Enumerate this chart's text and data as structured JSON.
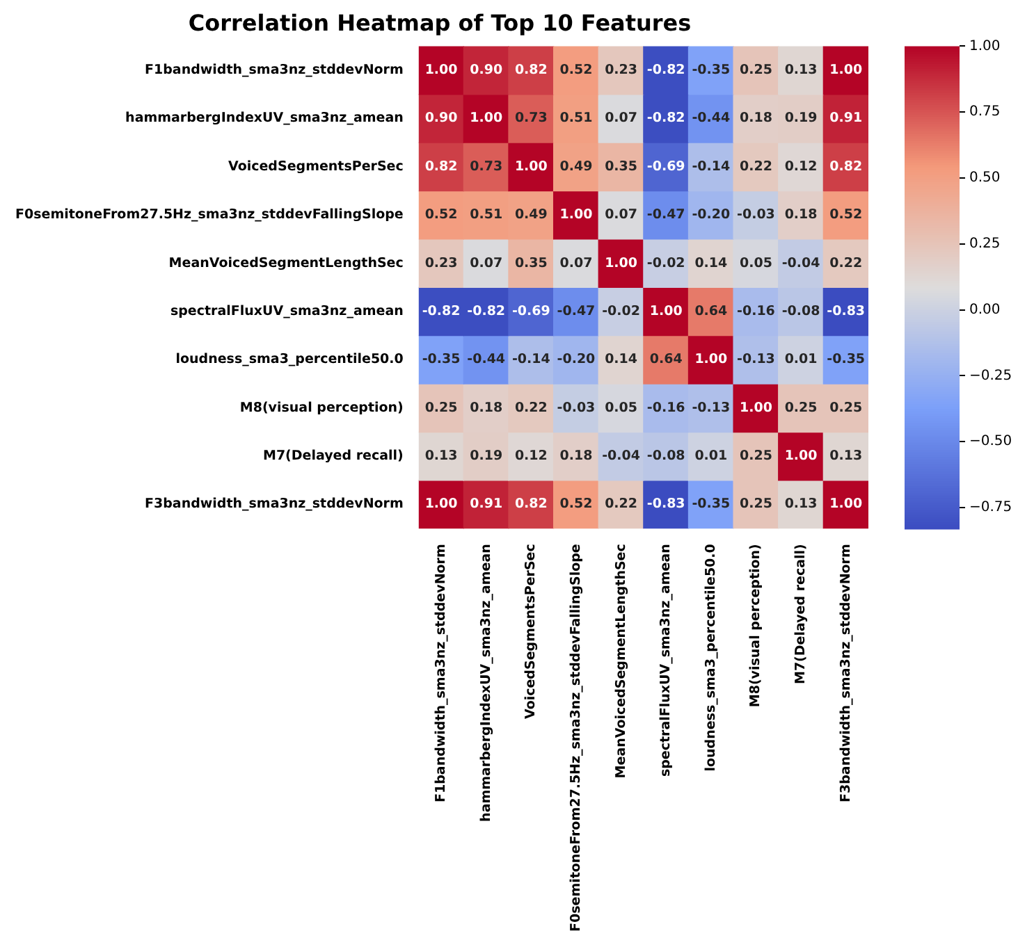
{
  "chart_data": {
    "type": "heatmap",
    "title": "Correlation Heatmap of Top 10 Features",
    "categories": [
      "F1bandwidth_sma3nz_stddevNorm",
      "hammarbergIndexUV_sma3nz_amean",
      "VoicedSegmentsPerSec",
      "F0semitoneFrom27.5Hz_sma3nz_stddevFallingSlope",
      "MeanVoicedSegmentLengthSec",
      "spectralFluxUV_sma3nz_amean",
      "loudness_sma3_percentile50.0",
      "M8(visual perception)",
      "M7(Delayed recall)",
      "F3bandwidth_sma3nz_stddevNorm"
    ],
    "y_categories": [
      "F1bandwidth_sma3nz_stddevNorm",
      "hammarbergIndexUV_sma3nz_amean",
      "VoicedSegmentsPerSec",
      "F0semitoneFrom27.5Hz_sma3nz_stddevFallingSlope",
      "MeanVoicedSegmentLengthSec",
      "spectralFluxUV_sma3nz_amean",
      "loudness_sma3_percentile50.0",
      "M8(visual perception)",
      "M7(Delayed recall)",
      "F3bandwidth_sma3nz_stddevNorm"
    ],
    "cells": [
      [
        1.0,
        0.9,
        0.82,
        0.52,
        0.23,
        -0.82,
        -0.35,
        0.25,
        0.13,
        1.0
      ],
      [
        0.9,
        1.0,
        0.73,
        0.51,
        0.07,
        -0.82,
        -0.44,
        0.18,
        0.19,
        0.91
      ],
      [
        0.82,
        0.73,
        1.0,
        0.49,
        0.35,
        -0.69,
        -0.14,
        0.22,
        0.12,
        0.82
      ],
      [
        0.52,
        0.51,
        0.49,
        1.0,
        0.07,
        -0.47,
        -0.2,
        -0.03,
        0.18,
        0.52
      ],
      [
        0.23,
        0.07,
        0.35,
        0.07,
        1.0,
        -0.02,
        0.14,
        0.05,
        -0.04,
        0.22
      ],
      [
        -0.82,
        -0.82,
        -0.69,
        -0.47,
        -0.02,
        1.0,
        0.64,
        -0.16,
        -0.08,
        -0.83
      ],
      [
        -0.35,
        -0.44,
        -0.14,
        -0.2,
        0.14,
        0.64,
        1.0,
        -0.13,
        0.01,
        -0.35
      ],
      [
        0.25,
        0.18,
        0.22,
        -0.03,
        0.05,
        -0.16,
        -0.13,
        1.0,
        0.25,
        0.25
      ],
      [
        0.13,
        0.19,
        0.12,
        0.18,
        -0.04,
        -0.08,
        0.01,
        0.25,
        1.0,
        0.13
      ],
      [
        1.0,
        0.91,
        0.82,
        0.52,
        0.22,
        -0.83,
        -0.35,
        0.25,
        0.13,
        1.0
      ]
    ],
    "cell_labels": [
      [
        "1.00",
        "0.90",
        "0.82",
        "0.52",
        "0.23",
        "-0.82",
        "-0.35",
        "0.25",
        "0.13",
        "1.00"
      ],
      [
        "0.90",
        "1.00",
        "0.73",
        "0.51",
        "0.07",
        "-0.82",
        "-0.44",
        "0.18",
        "0.19",
        "0.91"
      ],
      [
        "0.82",
        "0.73",
        "1.00",
        "0.49",
        "0.35",
        "-0.69",
        "-0.14",
        "0.22",
        "0.12",
        "0.82"
      ],
      [
        "0.52",
        "0.51",
        "0.49",
        "1.00",
        "0.07",
        "-0.47",
        "-0.20",
        "-0.03",
        "0.18",
        "0.52"
      ],
      [
        "0.23",
        "0.07",
        "0.35",
        "0.07",
        "1.00",
        "-0.02",
        "0.14",
        "0.05",
        "-0.04",
        "0.22"
      ],
      [
        "-0.82",
        "-0.82",
        "-0.69",
        "-0.47",
        "-0.02",
        "1.00",
        "0.64",
        "-0.16",
        "-0.08",
        "-0.83"
      ],
      [
        "-0.35",
        "-0.44",
        "-0.14",
        "-0.20",
        "0.14",
        "0.64",
        "1.00",
        "-0.13",
        "0.01",
        "-0.35"
      ],
      [
        "0.25",
        "0.18",
        "0.22",
        "-0.03",
        "0.05",
        "-0.16",
        "-0.13",
        "1.00",
        "0.25",
        "0.25"
      ],
      [
        "0.13",
        "0.19",
        "0.12",
        "0.18",
        "-0.04",
        "-0.08",
        "0.01",
        "0.25",
        "1.00",
        "0.13"
      ],
      [
        "1.00",
        "0.91",
        "0.82",
        "0.52",
        "0.22",
        "-0.83",
        "-0.35",
        "0.25",
        "0.13",
        "1.00"
      ]
    ],
    "data_labels": true,
    "clim": [
      -0.83,
      1.0
    ],
    "cticks": [
      {
        "value": -0.75,
        "label": "−0.75"
      },
      {
        "value": -0.5,
        "label": "−0.50"
      },
      {
        "value": -0.25,
        "label": "−0.25"
      },
      {
        "value": 0,
        "label": "0.00"
      },
      {
        "value": 0.25,
        "label": "0.25"
      },
      {
        "value": 0.5,
        "label": "0.50"
      },
      {
        "value": 0.75,
        "label": "0.75"
      },
      {
        "value": 1,
        "label": "1.00"
      }
    ]
  }
}
